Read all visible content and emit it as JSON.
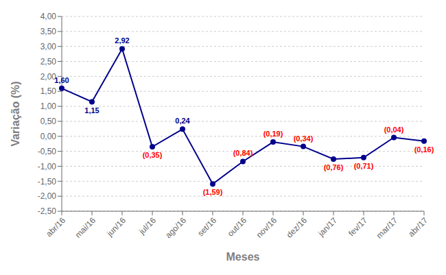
{
  "chart_data": {
    "type": "line",
    "categories": [
      "abr/16",
      "mai/16",
      "jun/16",
      "jul/16",
      "ago/16",
      "set/16",
      "out/16",
      "nov/16",
      "dez/16",
      "jan/17",
      "fev/17",
      "mar/17",
      "abr/17"
    ],
    "values": [
      1.6,
      1.15,
      2.92,
      -0.35,
      0.24,
      -1.59,
      -0.84,
      -0.19,
      -0.34,
      -0.76,
      -0.71,
      -0.04,
      -0.16
    ],
    "value_labels": [
      "1,60",
      "1,15",
      "2,92",
      "(0,35)",
      "0,24",
      "(1,59)",
      "(0,84)",
      "(0,19)",
      "(0,34)",
      "(0,76)",
      "(0,71)",
      "(0,04)",
      "(0,16)"
    ],
    "colors": [
      "#00008B",
      "#00008B",
      "#00008B",
      "#FF0000",
      "#00008B",
      "#FF0000",
      "#FF0000",
      "#FF0000",
      "#FF0000",
      "#FF0000",
      "#FF0000",
      "#FF0000",
      "#FF0000"
    ],
    "color": "#00008B",
    "marker": "circle",
    "xlabel": "Meses",
    "ylabel": "Variação (%)",
    "ylim": [
      -2.5,
      4.0
    ],
    "yticks": [
      {
        "value": -2.5,
        "label": "-2,50"
      },
      {
        "value": -2.0,
        "label": "-2,00"
      },
      {
        "value": -1.5,
        "label": "-1,50"
      },
      {
        "value": -1.0,
        "label": "-1,00"
      },
      {
        "value": -0.5,
        "label": "-0,50"
      },
      {
        "value": 0.0,
        "label": "0,00"
      },
      {
        "value": 0.5,
        "label": "0,50"
      },
      {
        "value": 1.0,
        "label": "1,00"
      },
      {
        "value": 1.5,
        "label": "1,50"
      },
      {
        "value": 2.0,
        "label": "2,00"
      },
      {
        "value": 2.5,
        "label": "2,50"
      },
      {
        "value": 3.0,
        "label": "3,00"
      },
      {
        "value": 3.5,
        "label": "3,50"
      },
      {
        "value": 4.0,
        "label": "4,00"
      }
    ],
    "grid": true,
    "data_labels": true
  }
}
